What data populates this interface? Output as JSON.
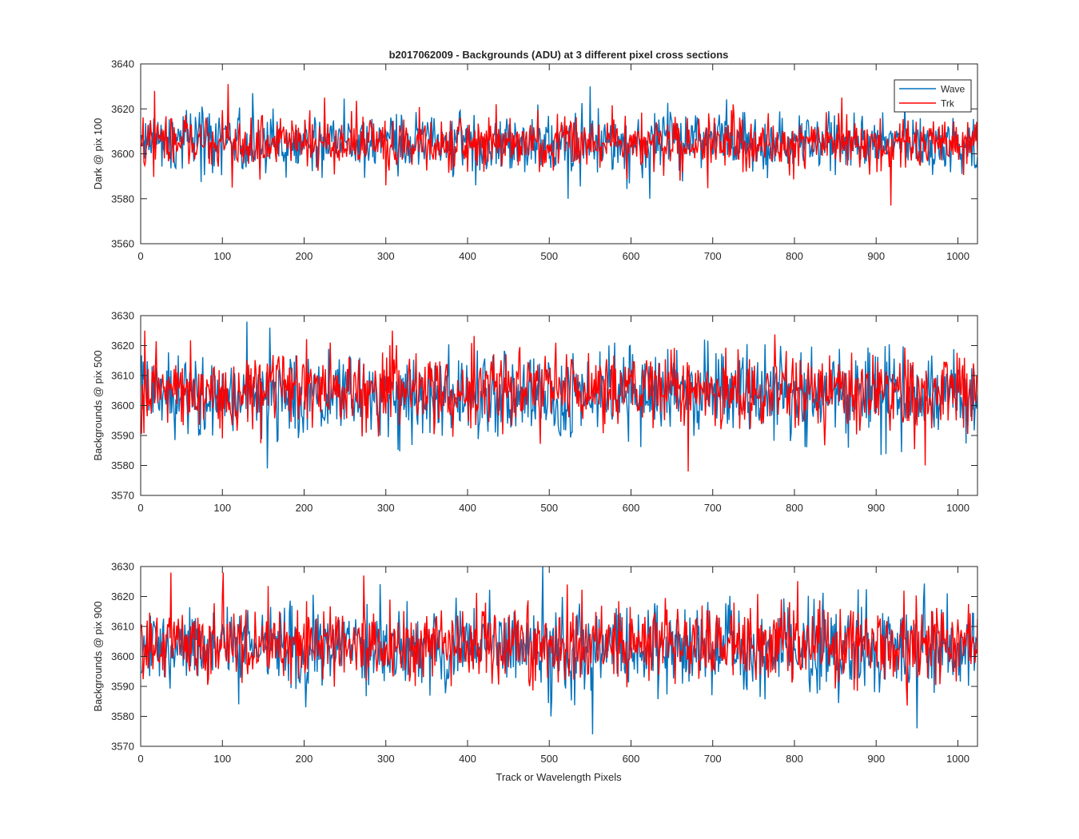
{
  "figure": {
    "title": "b2017062009 - Backgrounds (ADU) at 3 different pixel cross sections",
    "xlabel": "Track or Wavelength Pixels"
  },
  "colors": {
    "wave": "#0072BD",
    "trk": "#FF0000",
    "axes": "#262626"
  },
  "legend": {
    "placement": "top-right",
    "entries": [
      "Wave",
      "Trk"
    ]
  },
  "chart_data": [
    {
      "type": "line",
      "ylabel": "Dark @ pix 100",
      "xlim": [
        0,
        1024
      ],
      "ylim": [
        3560,
        3640
      ],
      "xticks": [
        0,
        100,
        200,
        300,
        400,
        500,
        600,
        700,
        800,
        900,
        1000
      ],
      "yticks": [
        3560,
        3580,
        3600,
        3620,
        3640
      ],
      "grid": false,
      "series": [
        {
          "name": "Wave",
          "mean": 3605,
          "noise_sd": 6.5,
          "n_points": 1024,
          "x_range": [
            1,
            1024
          ],
          "features": [
            [
              75,
              3621
            ],
            [
              137,
              3627
            ],
            [
              550,
              3630
            ],
            [
              523,
              3580
            ],
            [
              623,
              3580
            ]
          ]
        },
        {
          "name": "Trk",
          "mean": 3605,
          "noise_sd": 6.0,
          "n_points": 1024,
          "x_range": [
            1,
            1024
          ],
          "features": [
            [
              17,
              3628
            ],
            [
              107,
              3631
            ],
            [
              112,
              3585
            ],
            [
              225,
              3625
            ],
            [
              300,
              3586
            ],
            [
              858,
              3625
            ],
            [
              918,
              3577
            ]
          ]
        }
      ]
    },
    {
      "type": "line",
      "ylabel": "Backgrounds @ pix 500",
      "xlim": [
        0,
        1024
      ],
      "ylim": [
        3570,
        3630
      ],
      "xticks": [
        0,
        100,
        200,
        300,
        400,
        500,
        600,
        700,
        800,
        900,
        1000
      ],
      "yticks": [
        3570,
        3580,
        3590,
        3600,
        3610,
        3620,
        3630
      ],
      "grid": false,
      "series": [
        {
          "name": "Wave",
          "mean": 3604,
          "noise_sd": 7.0,
          "n_points": 1024,
          "x_range": [
            1,
            1024
          ],
          "features": [
            [
              130,
              3628
            ],
            [
              155,
              3579
            ],
            [
              158,
              3626
            ],
            [
              690,
              3622
            ]
          ]
        },
        {
          "name": "Trk",
          "mean": 3605,
          "noise_sd": 6.5,
          "n_points": 1024,
          "x_range": [
            1,
            1024
          ],
          "features": [
            [
              5,
              3625
            ],
            [
              670,
              3578
            ],
            [
              960,
              3580
            ],
            [
              308,
              3625
            ]
          ]
        }
      ]
    },
    {
      "type": "line",
      "ylabel": "Backgrounds @ pix 900",
      "xlim": [
        0,
        1024
      ],
      "ylim": [
        3570,
        3630
      ],
      "xticks": [
        0,
        100,
        200,
        300,
        400,
        500,
        600,
        700,
        800,
        900,
        1000
      ],
      "yticks": [
        3570,
        3580,
        3590,
        3600,
        3610,
        3620,
        3630
      ],
      "grid": false,
      "series": [
        {
          "name": "Wave",
          "mean": 3603,
          "noise_sd": 7.0,
          "n_points": 1024,
          "x_range": [
            1,
            1024
          ],
          "features": [
            [
              492,
              3630
            ],
            [
              553,
              3574
            ],
            [
              950,
              3576
            ],
            [
              202,
              3583
            ]
          ]
        },
        {
          "name": "Trk",
          "mean": 3604,
          "noise_sd": 6.5,
          "n_points": 1024,
          "x_range": [
            1,
            1024
          ],
          "features": [
            [
              37,
              3628
            ],
            [
              101,
              3628
            ],
            [
              273,
              3627
            ],
            [
              522,
              3624
            ]
          ]
        }
      ]
    }
  ]
}
